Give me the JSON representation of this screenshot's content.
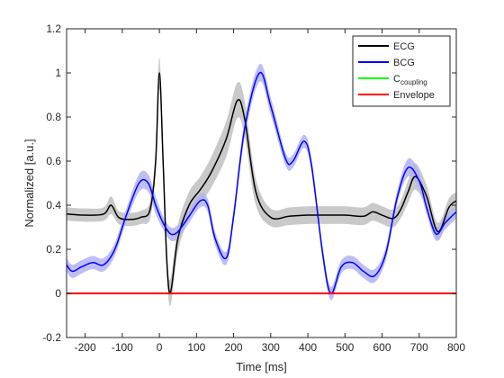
{
  "chart_data": {
    "type": "line",
    "xlabel": "Time [ms]",
    "ylabel": "Normalized [a.u.]",
    "xlim": [
      -250,
      800
    ],
    "ylim": [
      -0.2,
      1.2
    ],
    "xticks": [
      -200,
      -100,
      0,
      100,
      200,
      300,
      400,
      500,
      600,
      700,
      800
    ],
    "yticks": [
      -0.2,
      0,
      0.2,
      0.4,
      0.6,
      0.8,
      1,
      1.2
    ],
    "x_tick_labels": [
      "-200",
      "-100",
      "0",
      "100",
      "200",
      "300",
      "400",
      "500",
      "600",
      "700",
      "800"
    ],
    "y_tick_labels": [
      "-0.2",
      "0",
      "0.2",
      "0.4",
      "0.6",
      "0.8",
      "1",
      "1.2"
    ],
    "grid": false,
    "legend_position": "top-right",
    "series": [
      {
        "name": "ECG",
        "color": "#000000",
        "band_color": "#bfbfbf",
        "x": [
          -250,
          -200,
          -150,
          -130,
          -110,
          -80,
          -50,
          -25,
          -10,
          0,
          10,
          20,
          30,
          50,
          80,
          110,
          140,
          180,
          210,
          230,
          260,
          300,
          350,
          400,
          450,
          500,
          550,
          575,
          600,
          630,
          650,
          670,
          690,
          720,
          750,
          780,
          800
        ],
        "y": [
          0.36,
          0.355,
          0.36,
          0.4,
          0.345,
          0.335,
          0.345,
          0.38,
          0.6,
          1.0,
          0.6,
          0.15,
          0.005,
          0.25,
          0.4,
          0.47,
          0.55,
          0.7,
          0.875,
          0.79,
          0.46,
          0.345,
          0.35,
          0.355,
          0.355,
          0.355,
          0.35,
          0.37,
          0.355,
          0.34,
          0.38,
          0.46,
          0.53,
          0.44,
          0.28,
          0.39,
          0.42
        ],
        "band": [
          0.03,
          0.03,
          0.03,
          0.04,
          0.03,
          0.03,
          0.03,
          0.04,
          0.05,
          0.07,
          0.06,
          0.05,
          0.06,
          0.06,
          0.06,
          0.06,
          0.07,
          0.08,
          0.08,
          0.08,
          0.06,
          0.04,
          0.04,
          0.04,
          0.04,
          0.04,
          0.04,
          0.04,
          0.04,
          0.04,
          0.04,
          0.05,
          0.06,
          0.05,
          0.04,
          0.04,
          0.04
        ]
      },
      {
        "name": "BCG",
        "color": "#0000ff",
        "band_color": "#b3b3f5",
        "x": [
          -250,
          -235,
          -210,
          -180,
          -150,
          -120,
          -90,
          -55,
          -30,
          -10,
          10,
          30,
          50,
          80,
          110,
          130,
          150,
          180,
          200,
          230,
          270,
          300,
          340,
          360,
          390,
          410,
          440,
          462,
          490,
          520,
          550,
          580,
          610,
          640,
          670,
          700,
          720,
          745,
          770,
          800
        ],
        "y": [
          0.13,
          0.1,
          0.12,
          0.14,
          0.13,
          0.2,
          0.35,
          0.5,
          0.5,
          0.4,
          0.32,
          0.27,
          0.28,
          0.35,
          0.42,
          0.4,
          0.25,
          0.16,
          0.35,
          0.75,
          1.0,
          0.85,
          0.61,
          0.6,
          0.69,
          0.58,
          0.18,
          0.0,
          0.12,
          0.14,
          0.1,
          0.08,
          0.18,
          0.43,
          0.57,
          0.51,
          0.39,
          0.27,
          0.32,
          0.37
        ],
        "band": [
          0.03,
          0.03,
          0.03,
          0.03,
          0.03,
          0.03,
          0.03,
          0.04,
          0.04,
          0.04,
          0.03,
          0.03,
          0.03,
          0.03,
          0.03,
          0.03,
          0.03,
          0.03,
          0.03,
          0.04,
          0.04,
          0.04,
          0.03,
          0.03,
          0.03,
          0.03,
          0.03,
          0.03,
          0.03,
          0.03,
          0.03,
          0.03,
          0.03,
          0.03,
          0.04,
          0.04,
          0.03,
          0.03,
          0.03,
          0.03
        ]
      },
      {
        "name": "C",
        "name_subscript": "coupling",
        "color": "#00ff00",
        "x": [
          -250,
          800
        ],
        "y": [
          0,
          0
        ]
      },
      {
        "name": "Envelope",
        "color": "#ff0000",
        "x": [
          -250,
          800
        ],
        "y": [
          0,
          0
        ]
      }
    ]
  }
}
